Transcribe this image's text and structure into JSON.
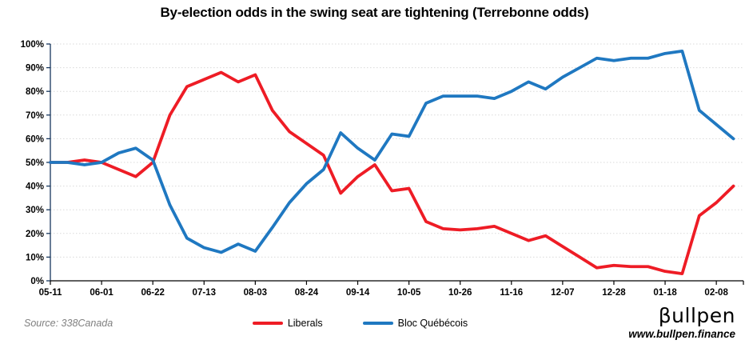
{
  "title": "By-election odds in the swing seat are tightening (Terrebonne odds)",
  "source_note": "Source: 338Canada",
  "logo": {
    "name": "βullpen",
    "url": "www.bullpen.finance"
  },
  "colors": {
    "liberals_red": "#ee1c25",
    "bloc_blue": "#1f78c1",
    "y_axis": "#17375e",
    "x_axis": "#000000",
    "gridline": "#d9d9d9",
    "source_text": "#7f7f7f"
  },
  "chart_data": {
    "type": "line",
    "title": "By-election odds in the swing seat are tightening (Terrebonne odds)",
    "xlabel": "",
    "ylabel": "",
    "ylim": [
      0,
      100
    ],
    "ytick_step": 10,
    "ytick_suffix": "%",
    "x_tick_every": 3,
    "grid": "horizontal-dotted",
    "legend_position": "bottom-center",
    "x": [
      "05-11",
      "05-18",
      "05-25",
      "06-01",
      "06-08",
      "06-15",
      "06-22",
      "06-29",
      "07-06",
      "07-13",
      "07-20",
      "07-27",
      "08-03",
      "08-10",
      "08-17",
      "08-24",
      "08-31",
      "09-07",
      "09-14",
      "09-21",
      "09-28",
      "10-05",
      "10-12",
      "10-19",
      "10-26",
      "11-02",
      "11-09",
      "11-16",
      "11-23",
      "11-30",
      "12-07",
      "12-14",
      "12-21",
      "12-28",
      "01-04",
      "01-11",
      "01-18",
      "01-25",
      "02-01",
      "02-08",
      "02-15"
    ],
    "x_tick_labels": [
      "05-11",
      "06-01",
      "06-22",
      "07-13",
      "08-03",
      "08-24",
      "09-14",
      "10-05",
      "10-26",
      "11-16",
      "12-07",
      "12-28",
      "01-18",
      "02-08"
    ],
    "series": [
      {
        "name": "Liberals",
        "color": "#ee1c25",
        "values": [
          50,
          50,
          51,
          50,
          47,
          44,
          50,
          70,
          82,
          85,
          88,
          84,
          87,
          72,
          63,
          58,
          53,
          37,
          44,
          49,
          38,
          39,
          25,
          22,
          21.5,
          22,
          23,
          20,
          17,
          19,
          14.5,
          10,
          5.5,
          6.5,
          6,
          6,
          4,
          3,
          27.5,
          33,
          40
        ]
      },
      {
        "name": "Bloc Québécois",
        "color": "#1f78c1",
        "values": [
          50,
          50,
          49,
          50,
          54,
          56,
          51,
          32,
          18,
          14,
          12,
          15.5,
          12.5,
          22.5,
          33,
          41,
          47,
          62.5,
          56,
          51,
          62,
          61,
          75,
          78,
          78,
          78,
          77,
          80,
          84,
          81,
          86,
          90,
          94,
          93,
          94,
          94,
          96,
          97,
          72,
          66,
          60
        ]
      }
    ]
  }
}
